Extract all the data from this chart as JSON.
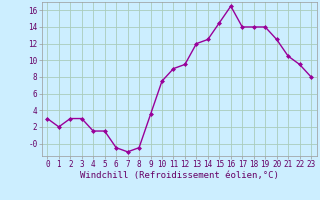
{
  "x": [
    0,
    1,
    2,
    3,
    4,
    5,
    6,
    7,
    8,
    9,
    10,
    11,
    12,
    13,
    14,
    15,
    16,
    17,
    18,
    19,
    20,
    21,
    22,
    23
  ],
  "y": [
    3.0,
    2.0,
    3.0,
    3.0,
    1.5,
    1.5,
    -0.5,
    -1.0,
    -0.5,
    3.5,
    7.5,
    9.0,
    9.5,
    12.0,
    12.5,
    14.5,
    16.5,
    14.0,
    14.0,
    14.0,
    12.5,
    10.5,
    9.5,
    8.0
  ],
  "line_color": "#990099",
  "marker": "D",
  "marker_size": 2.0,
  "line_width": 1.0,
  "bg_color": "#cceeff",
  "grid_color": "#aaccbb",
  "xlabel": "Windchill (Refroidissement éolien,°C)",
  "xlim_min": -0.5,
  "xlim_max": 23.5,
  "ylim_min": -1.5,
  "ylim_max": 17.0,
  "yticks": [
    0,
    2,
    4,
    6,
    8,
    10,
    12,
    14,
    16
  ],
  "ytick_labels": [
    "-0",
    "2",
    "4",
    "6",
    "8",
    "10",
    "12",
    "14",
    "16"
  ],
  "xtick_labels": [
    "0",
    "1",
    "2",
    "3",
    "4",
    "5",
    "6",
    "7",
    "8",
    "9",
    "10",
    "11",
    "12",
    "13",
    "14",
    "15",
    "16",
    "17",
    "18",
    "19",
    "20",
    "21",
    "22",
    "23"
  ],
  "tick_fontsize": 5.5,
  "xlabel_fontsize": 6.5
}
